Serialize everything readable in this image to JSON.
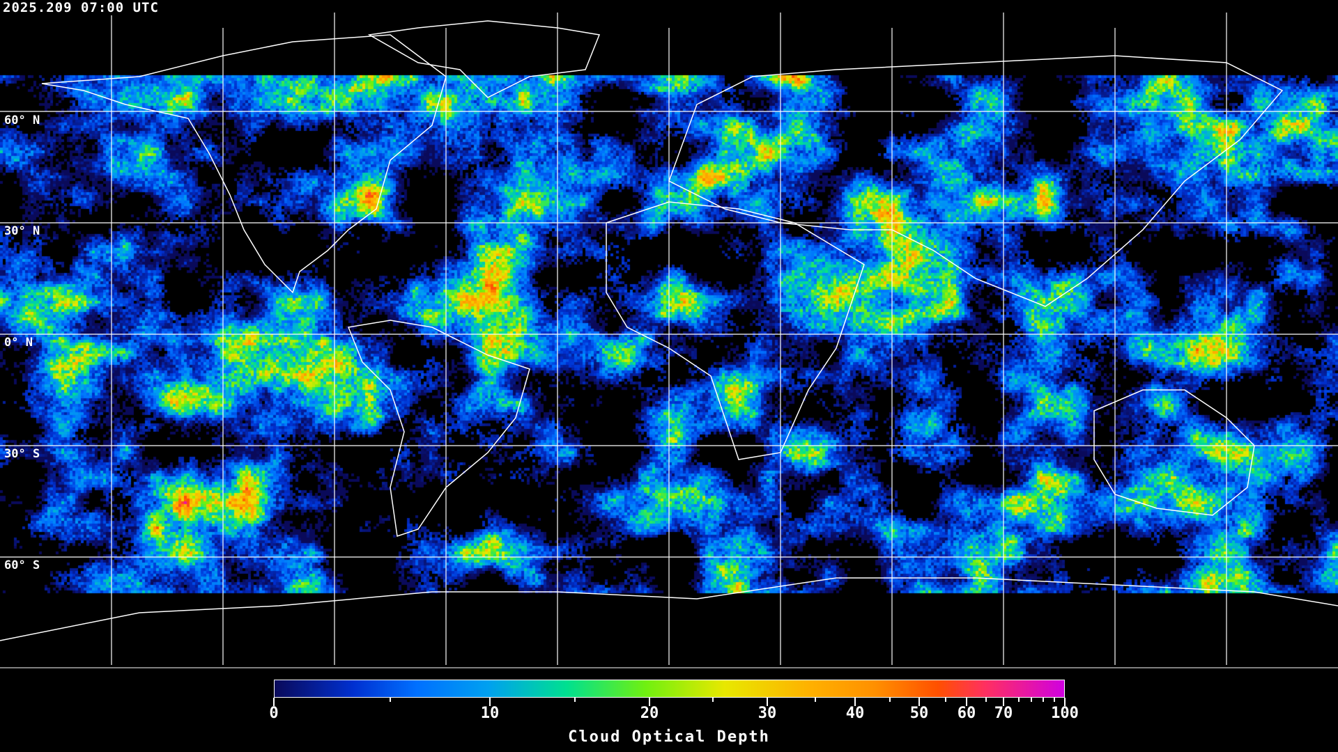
{
  "timestamp": "2025.209 07:00 UTC",
  "latitude_labels": [
    "60° N",
    "30° N",
    "0° N",
    "30° S",
    "60° S"
  ],
  "colorbar": {
    "title": "Cloud Optical Depth",
    "tick_labels": [
      "0",
      "10",
      "20",
      "30",
      "40",
      "50",
      "60",
      "70",
      "100"
    ],
    "range": [
      0,
      100
    ],
    "colors": [
      "#0a0a5a",
      "#0030d0",
      "#0070ff",
      "#00a0f0",
      "#00e090",
      "#70f010",
      "#e8e800",
      "#ffb000",
      "#ff9000",
      "#ff5000",
      "#ff3060",
      "#d000e0"
    ]
  },
  "map": {
    "projection": "equirectangular",
    "grid_spacing_deg": 30,
    "coastline_color": "#ffffff",
    "no_data_color": "#000000"
  }
}
